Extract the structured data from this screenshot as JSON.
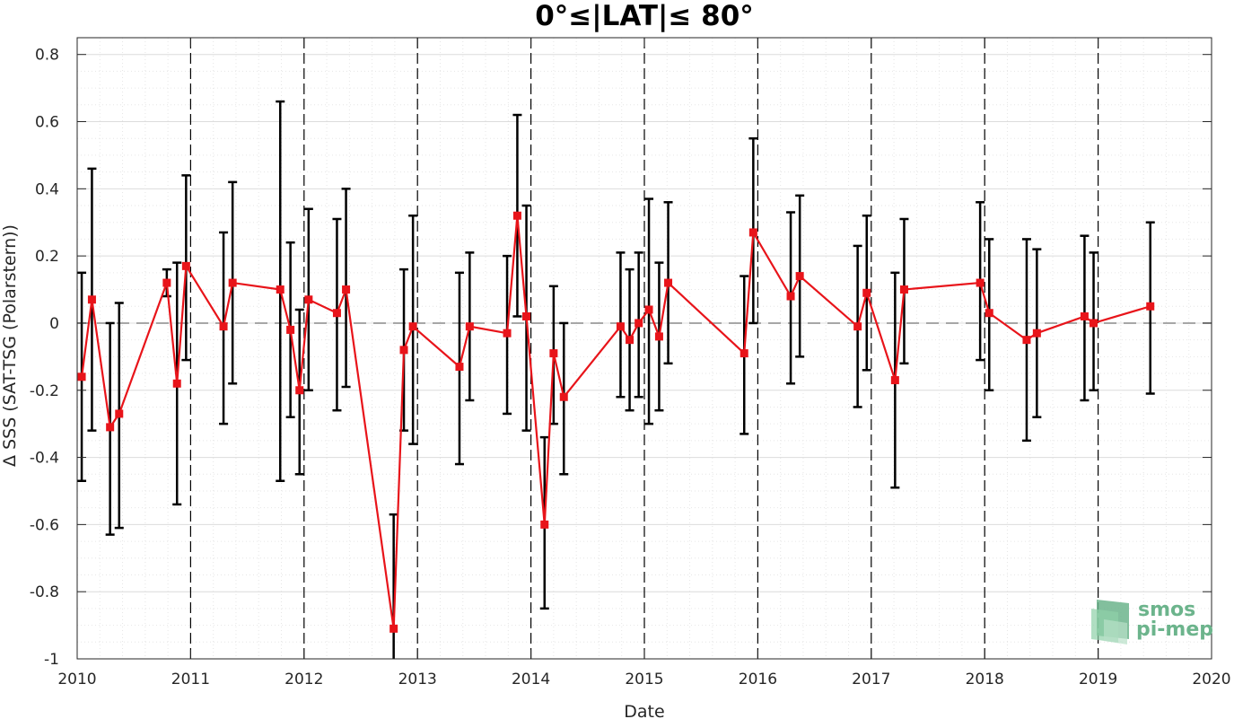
{
  "chart_data": {
    "type": "line",
    "title": "0°≤|LAT|≤ 80°",
    "xlabel": "Date",
    "ylabel": "Δ SSS (SAT-TSG (Polarstern))",
    "xlim": [
      2010,
      2020
    ],
    "ylim": [
      -1,
      0.85
    ],
    "x_ticks": [
      2010,
      2011,
      2012,
      2013,
      2014,
      2015,
      2016,
      2017,
      2018,
      2019,
      2020
    ],
    "y_ticks": [
      0.8,
      0.6,
      0.4,
      0.2,
      0,
      -0.2,
      -0.4,
      -0.6,
      -0.8,
      -1
    ],
    "y_tick_labels": [
      "0.8",
      "0.6",
      "0.4",
      "0.2",
      "0",
      "-0.2",
      "-0.4",
      "-0.6",
      "-0.8",
      "-1"
    ],
    "grid": true,
    "reference_line": 0,
    "year_separators": [
      2011,
      2012,
      2013,
      2014,
      2015,
      2016,
      2017,
      2018,
      2019
    ],
    "series": [
      {
        "color": "#e8141a",
        "error_bar_color": "#000000",
        "points": [
          {
            "x": 2010.04,
            "y": -0.16,
            "lo": -0.47,
            "hi": 0.15
          },
          {
            "x": 2010.13,
            "y": 0.07,
            "lo": -0.32,
            "hi": 0.46
          },
          {
            "x": 2010.29,
            "y": -0.31,
            "lo": -0.63,
            "hi": 0.0
          },
          {
            "x": 2010.37,
            "y": -0.27,
            "lo": -0.61,
            "hi": 0.06
          },
          {
            "x": 2010.79,
            "y": 0.12,
            "lo": 0.08,
            "hi": 0.16
          },
          {
            "x": 2010.88,
            "y": -0.18,
            "lo": -0.54,
            "hi": 0.18
          },
          {
            "x": 2010.96,
            "y": 0.17,
            "lo": -0.11,
            "hi": 0.44
          },
          {
            "x": 2011.29,
            "y": -0.01,
            "lo": -0.3,
            "hi": 0.27
          },
          {
            "x": 2011.37,
            "y": 0.12,
            "lo": -0.18,
            "hi": 0.42
          },
          {
            "x": 2011.79,
            "y": 0.1,
            "lo": -0.47,
            "hi": 0.66
          },
          {
            "x": 2011.88,
            "y": -0.02,
            "lo": -0.28,
            "hi": 0.24
          },
          {
            "x": 2011.96,
            "y": -0.2,
            "lo": -0.45,
            "hi": 0.04
          },
          {
            "x": 2012.04,
            "y": 0.07,
            "lo": -0.2,
            "hi": 0.34
          },
          {
            "x": 2012.29,
            "y": 0.03,
            "lo": -0.26,
            "hi": 0.31
          },
          {
            "x": 2012.37,
            "y": 0.1,
            "lo": -0.19,
            "hi": 0.4
          },
          {
            "x": 2012.79,
            "y": -0.91,
            "lo": -1.0,
            "hi": -0.57
          },
          {
            "x": 2012.88,
            "y": -0.08,
            "lo": -0.32,
            "hi": 0.16
          },
          {
            "x": 2012.96,
            "y": -0.01,
            "lo": -0.36,
            "hi": 0.32
          },
          {
            "x": 2013.37,
            "y": -0.13,
            "lo": -0.42,
            "hi": 0.15
          },
          {
            "x": 2013.46,
            "y": -0.01,
            "lo": -0.23,
            "hi": 0.21
          },
          {
            "x": 2013.79,
            "y": -0.03,
            "lo": -0.27,
            "hi": 0.2
          },
          {
            "x": 2013.88,
            "y": 0.32,
            "lo": 0.02,
            "hi": 0.62
          },
          {
            "x": 2013.96,
            "y": 0.02,
            "lo": -0.32,
            "hi": 0.35
          },
          {
            "x": 2014.12,
            "y": -0.6,
            "lo": -0.85,
            "hi": -0.34
          },
          {
            "x": 2014.2,
            "y": -0.09,
            "lo": -0.3,
            "hi": 0.11
          },
          {
            "x": 2014.29,
            "y": -0.22,
            "lo": -0.45,
            "hi": 0.0
          },
          {
            "x": 2014.79,
            "y": -0.01,
            "lo": -0.22,
            "hi": 0.21
          },
          {
            "x": 2014.87,
            "y": -0.05,
            "lo": -0.26,
            "hi": 0.16
          },
          {
            "x": 2014.95,
            "y": -0.0,
            "lo": -0.22,
            "hi": 0.21
          },
          {
            "x": 2015.04,
            "y": 0.04,
            "lo": -0.3,
            "hi": 0.37
          },
          {
            "x": 2015.13,
            "y": -0.04,
            "lo": -0.26,
            "hi": 0.18
          },
          {
            "x": 2015.21,
            "y": 0.12,
            "lo": -0.12,
            "hi": 0.36
          },
          {
            "x": 2015.88,
            "y": -0.09,
            "lo": -0.33,
            "hi": 0.14
          },
          {
            "x": 2015.96,
            "y": 0.27,
            "lo": 0.0,
            "hi": 0.55
          },
          {
            "x": 2016.29,
            "y": 0.08,
            "lo": -0.18,
            "hi": 0.33
          },
          {
            "x": 2016.37,
            "y": 0.14,
            "lo": -0.1,
            "hi": 0.38
          },
          {
            "x": 2016.88,
            "y": -0.01,
            "lo": -0.25,
            "hi": 0.23
          },
          {
            "x": 2016.96,
            "y": 0.09,
            "lo": -0.14,
            "hi": 0.32
          },
          {
            "x": 2017.21,
            "y": -0.17,
            "lo": -0.49,
            "hi": 0.15
          },
          {
            "x": 2017.29,
            "y": 0.1,
            "lo": -0.12,
            "hi": 0.31
          },
          {
            "x": 2017.96,
            "y": 0.12,
            "lo": -0.11,
            "hi": 0.36
          },
          {
            "x": 2018.04,
            "y": 0.03,
            "lo": -0.2,
            "hi": 0.25
          },
          {
            "x": 2018.37,
            "y": -0.05,
            "lo": -0.35,
            "hi": 0.25
          },
          {
            "x": 2018.46,
            "y": -0.03,
            "lo": -0.28,
            "hi": 0.22
          },
          {
            "x": 2018.88,
            "y": 0.02,
            "lo": -0.23,
            "hi": 0.26
          },
          {
            "x": 2018.96,
            "y": 0.0,
            "lo": -0.2,
            "hi": 0.21
          },
          {
            "x": 2019.46,
            "y": 0.05,
            "lo": -0.21,
            "hi": 0.3
          }
        ]
      }
    ]
  },
  "logo": {
    "line1": "smos",
    "line2": "pi-mep"
  }
}
